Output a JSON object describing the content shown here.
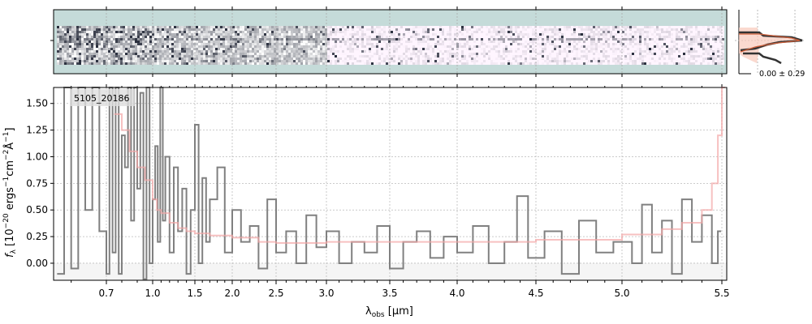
{
  "chart_data": {
    "type": "line",
    "title": "",
    "object_label": "5105_20186",
    "xlabel": "λobs [µm]",
    "xlabel_parts": {
      "sym": "λ",
      "sub": "obs",
      "unit": " [µm]"
    },
    "ylabel": "fλ [10^-20 ergs^-1 cm^-2 Å^-1]",
    "ylabel_parts": {
      "sym": "f",
      "sub": "λ",
      "pre": " [10",
      "exp1": "−20",
      "mid": " ergs",
      "exp2": "−1",
      "mid2": "cm",
      "exp3": "−2",
      "mid3": "Å",
      "exp4": "−1",
      "post": "]"
    },
    "xlim": [
      0.55,
      5.52
    ],
    "ylim": [
      -0.16,
      1.65
    ],
    "grid": true,
    "x_ticks": [
      0.7,
      1.0,
      1.5,
      2.0,
      2.5,
      3.0,
      3.5,
      4.0,
      4.5,
      5.0,
      5.5
    ],
    "x_tick_labels": [
      "0.7",
      "1.0",
      "1.5",
      "2.0",
      "2.5",
      "3.0",
      "3.5",
      "4.0",
      "4.5",
      "5.0",
      "5.5"
    ],
    "y_ticks": [
      0,
      0.25,
      0.5,
      0.75,
      1.0,
      1.25,
      1.5
    ],
    "y_tick_labels": [
      "0.00",
      "0.25",
      "0.50",
      "0.75",
      "1.00",
      "1.25",
      "1.50"
    ],
    "series": [
      {
        "name": "data",
        "color": "#808080",
        "x": [
          0.56,
          0.58,
          0.6,
          0.62,
          0.64,
          0.66,
          0.68,
          0.7,
          0.72,
          0.74,
          0.76,
          0.78,
          0.8,
          0.82,
          0.84,
          0.86,
          0.88,
          0.9,
          0.92,
          0.94,
          0.96,
          0.98,
          1.0,
          1.03,
          1.06,
          1.09,
          1.12,
          1.15,
          1.2,
          1.25,
          1.3,
          1.35,
          1.4,
          1.45,
          1.5,
          1.55,
          1.6,
          1.65,
          1.7,
          1.8,
          1.9,
          2.0,
          2.1,
          2.2,
          2.3,
          2.4,
          2.5,
          2.6,
          2.7,
          2.8,
          2.9,
          3.0,
          3.1,
          3.2,
          3.3,
          3.4,
          3.5,
          3.6,
          3.7,
          3.8,
          3.9,
          4.0,
          4.1,
          4.2,
          4.3,
          4.38,
          4.45,
          4.55,
          4.65,
          4.75,
          4.85,
          4.95,
          5.05,
          5.1,
          5.15,
          5.2,
          5.25,
          5.3,
          5.35,
          5.4,
          5.45,
          5.48
        ],
        "y": [
          -0.1,
          1.8,
          -0.05,
          1.9,
          0.5,
          1.8,
          0.3,
          -0.1,
          1.9,
          0.1,
          1.9,
          -0.1,
          1.2,
          0.9,
          1.9,
          0.4,
          1.8,
          0.7,
          1.6,
          -0.15,
          1.9,
          0.0,
          0.6,
          1.1,
          0.2,
          1.7,
          0.4,
          1.0,
          0.1,
          0.9,
          0.3,
          0.7,
          -0.1,
          0.5,
          1.3,
          0.0,
          0.8,
          0.2,
          0.6,
          0.9,
          0.1,
          0.5,
          0.2,
          0.35,
          -0.05,
          0.6,
          0.1,
          0.3,
          0.0,
          0.45,
          0.15,
          0.3,
          0.0,
          0.2,
          0.1,
          0.35,
          -0.05,
          0.2,
          0.3,
          0.05,
          0.25,
          0.1,
          0.35,
          0.0,
          0.2,
          0.63,
          0.05,
          0.3,
          -0.1,
          0.4,
          0.1,
          0.2,
          0.0,
          0.55,
          0.1,
          0.4,
          -0.1,
          0.6,
          0.2,
          0.45,
          0.0,
          0.3
        ]
      },
      {
        "name": "model",
        "color": "#f4a6a6",
        "x": [
          0.75,
          0.8,
          0.85,
          0.9,
          0.95,
          1.0,
          1.05,
          1.1,
          1.2,
          1.3,
          1.4,
          1.5,
          1.7,
          2.0,
          2.3,
          2.5,
          3.0,
          3.5,
          4.0,
          4.5,
          5.0,
          5.2,
          5.3,
          5.4,
          5.45,
          5.48,
          5.5
        ],
        "y": [
          1.4,
          1.25,
          1.05,
          0.9,
          0.78,
          0.6,
          0.5,
          0.47,
          0.38,
          0.33,
          0.3,
          0.28,
          0.26,
          0.24,
          0.2,
          0.19,
          0.2,
          0.2,
          0.2,
          0.22,
          0.27,
          0.32,
          0.38,
          0.5,
          0.75,
          1.2,
          1.65
        ]
      }
    ],
    "profile_panel": {
      "label": "0.00 ± 0.29"
    }
  }
}
